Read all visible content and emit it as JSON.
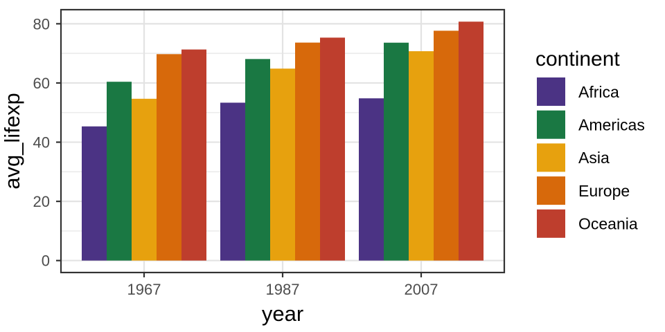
{
  "chart_data": {
    "type": "bar",
    "title": "",
    "xlabel": "year",
    "ylabel": "avg_lifexp",
    "categories": [
      "1967",
      "1987",
      "2007"
    ],
    "series": [
      {
        "name": "Africa",
        "color": "#4B3384",
        "values": [
          45.33,
          53.34,
          54.81
        ]
      },
      {
        "name": "Americas",
        "color": "#1A7843",
        "values": [
          60.41,
          68.09,
          73.61
        ]
      },
      {
        "name": "Asia",
        "color": "#E7A10E",
        "values": [
          54.66,
          64.85,
          70.73
        ]
      },
      {
        "name": "Europe",
        "color": "#D7690B",
        "values": [
          69.74,
          73.64,
          77.65
        ]
      },
      {
        "name": "Oceania",
        "color": "#BE3E2D",
        "values": [
          71.31,
          75.32,
          80.72
        ]
      }
    ],
    "y_ticks": [
      0,
      20,
      40,
      60,
      80
    ],
    "y_minor_ticks": [
      10,
      30,
      50,
      70
    ],
    "ylim": [
      -4.04,
      84.76
    ],
    "grid": true,
    "legend": {
      "title": "continent",
      "position": "right"
    }
  },
  "style": {
    "background": "#FFFFFF",
    "panel_background": "#FFFFFF",
    "panel_border": "#333333",
    "grid_major": "#E3E3E3",
    "grid_minor": "#EBEBEB",
    "tick_color": "#333333",
    "tick_label_color": "#4D4D4D",
    "title_color": "#000000",
    "legend_text_color": "#000000"
  }
}
